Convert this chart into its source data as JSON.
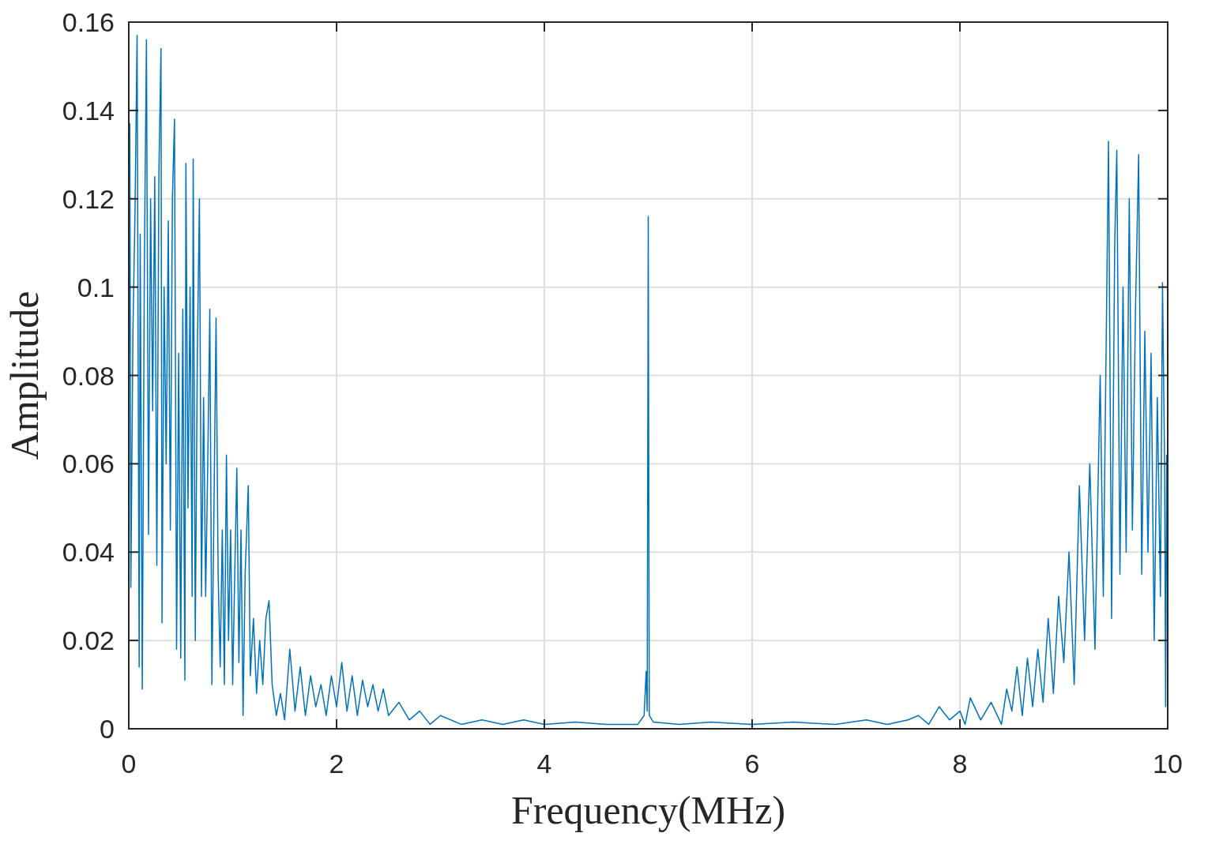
{
  "chart_data": {
    "type": "line",
    "xlabel": "Frequency(MHz)",
    "ylabel": "Amplitude",
    "xlim": [
      0,
      10
    ],
    "ylim": [
      0,
      0.16
    ],
    "xticks": [
      0,
      2,
      4,
      6,
      8,
      10
    ],
    "yticks": [
      0,
      0.02,
      0.04,
      0.06,
      0.08,
      0.1,
      0.12,
      0.14,
      0.16
    ],
    "grid": true,
    "marker": "none",
    "line_style": "solid",
    "series": [
      {
        "color": "#0072bd",
        "x": [
          0,
          0.01,
          0.02,
          0.04,
          0.06,
          0.08,
          0.1,
          0.11,
          0.13,
          0.15,
          0.17,
          0.19,
          0.21,
          0.23,
          0.25,
          0.27,
          0.29,
          0.31,
          0.32,
          0.34,
          0.36,
          0.38,
          0.4,
          0.42,
          0.44,
          0.46,
          0.48,
          0.5,
          0.52,
          0.54,
          0.55,
          0.57,
          0.59,
          0.61,
          0.62,
          0.64,
          0.66,
          0.68,
          0.7,
          0.72,
          0.74,
          0.76,
          0.78,
          0.8,
          0.82,
          0.84,
          0.86,
          0.88,
          0.9,
          0.92,
          0.94,
          0.96,
          0.98,
          1.0,
          1.02,
          1.04,
          1.06,
          1.08,
          1.1,
          1.12,
          1.15,
          1.17,
          1.2,
          1.23,
          1.26,
          1.29,
          1.32,
          1.35,
          1.38,
          1.42,
          1.46,
          1.5,
          1.55,
          1.6,
          1.65,
          1.7,
          1.75,
          1.8,
          1.85,
          1.9,
          1.95,
          2.0,
          2.05,
          2.1,
          2.15,
          2.2,
          2.25,
          2.3,
          2.35,
          2.4,
          2.45,
          2.5,
          2.6,
          2.7,
          2.8,
          2.9,
          3.0,
          3.2,
          3.4,
          3.6,
          3.8,
          4.0,
          4.3,
          4.6,
          4.9,
          4.96,
          4.98,
          4.99,
          5.0,
          5.01,
          5.05,
          5.3,
          5.6,
          6.0,
          6.4,
          6.8,
          7.1,
          7.3,
          7.5,
          7.6,
          7.7,
          7.8,
          7.9,
          8.0,
          8.05,
          8.1,
          8.2,
          8.3,
          8.4,
          8.45,
          8.5,
          8.55,
          8.6,
          8.65,
          8.7,
          8.75,
          8.8,
          8.85,
          8.9,
          8.95,
          9.0,
          9.05,
          9.1,
          9.15,
          9.2,
          9.25,
          9.3,
          9.35,
          9.38,
          9.43,
          9.46,
          9.49,
          9.51,
          9.54,
          9.57,
          9.6,
          9.63,
          9.66,
          9.69,
          9.72,
          9.75,
          9.78,
          9.81,
          9.84,
          9.87,
          9.9,
          9.93,
          9.95,
          9.97,
          9.98,
          9.99,
          10.0
        ],
        "values": [
          0.07,
          0.137,
          0.032,
          0.09,
          0.117,
          0.157,
          0.014,
          0.112,
          0.009,
          0.105,
          0.156,
          0.044,
          0.12,
          0.072,
          0.125,
          0.037,
          0.126,
          0.154,
          0.024,
          0.1,
          0.06,
          0.115,
          0.045,
          0.12,
          0.138,
          0.018,
          0.085,
          0.016,
          0.095,
          0.011,
          0.128,
          0.05,
          0.1,
          0.03,
          0.129,
          0.02,
          0.085,
          0.12,
          0.03,
          0.075,
          0.03,
          0.06,
          0.095,
          0.01,
          0.05,
          0.093,
          0.035,
          0.014,
          0.045,
          0.01,
          0.062,
          0.02,
          0.045,
          0.01,
          0.035,
          0.059,
          0.015,
          0.045,
          0.003,
          0.035,
          0.055,
          0.012,
          0.025,
          0.008,
          0.02,
          0.01,
          0.025,
          0.029,
          0.01,
          0.003,
          0.008,
          0.002,
          0.018,
          0.004,
          0.014,
          0.003,
          0.012,
          0.005,
          0.01,
          0.003,
          0.012,
          0.005,
          0.015,
          0.004,
          0.012,
          0.003,
          0.011,
          0.005,
          0.01,
          0.004,
          0.009,
          0.003,
          0.006,
          0.002,
          0.004,
          0.001,
          0.003,
          0.001,
          0.002,
          0.001,
          0.002,
          0.001,
          0.0015,
          0.001,
          0.001,
          0.003,
          0.013,
          0.004,
          0.116,
          0.003,
          0.0015,
          0.001,
          0.0015,
          0.001,
          0.0015,
          0.001,
          0.002,
          0.001,
          0.002,
          0.003,
          0.001,
          0.005,
          0.002,
          0.004,
          0.001,
          0.007,
          0.002,
          0.006,
          0.001,
          0.009,
          0.004,
          0.014,
          0.003,
          0.016,
          0.005,
          0.018,
          0.006,
          0.025,
          0.008,
          0.03,
          0.015,
          0.04,
          0.01,
          0.055,
          0.02,
          0.06,
          0.018,
          0.08,
          0.03,
          0.133,
          0.025,
          0.11,
          0.131,
          0.035,
          0.1,
          0.04,
          0.12,
          0.045,
          0.095,
          0.13,
          0.035,
          0.09,
          0.04,
          0.085,
          0.02,
          0.075,
          0.03,
          0.101,
          0.06,
          0.005,
          0.062,
          0.025
        ]
      }
    ]
  }
}
